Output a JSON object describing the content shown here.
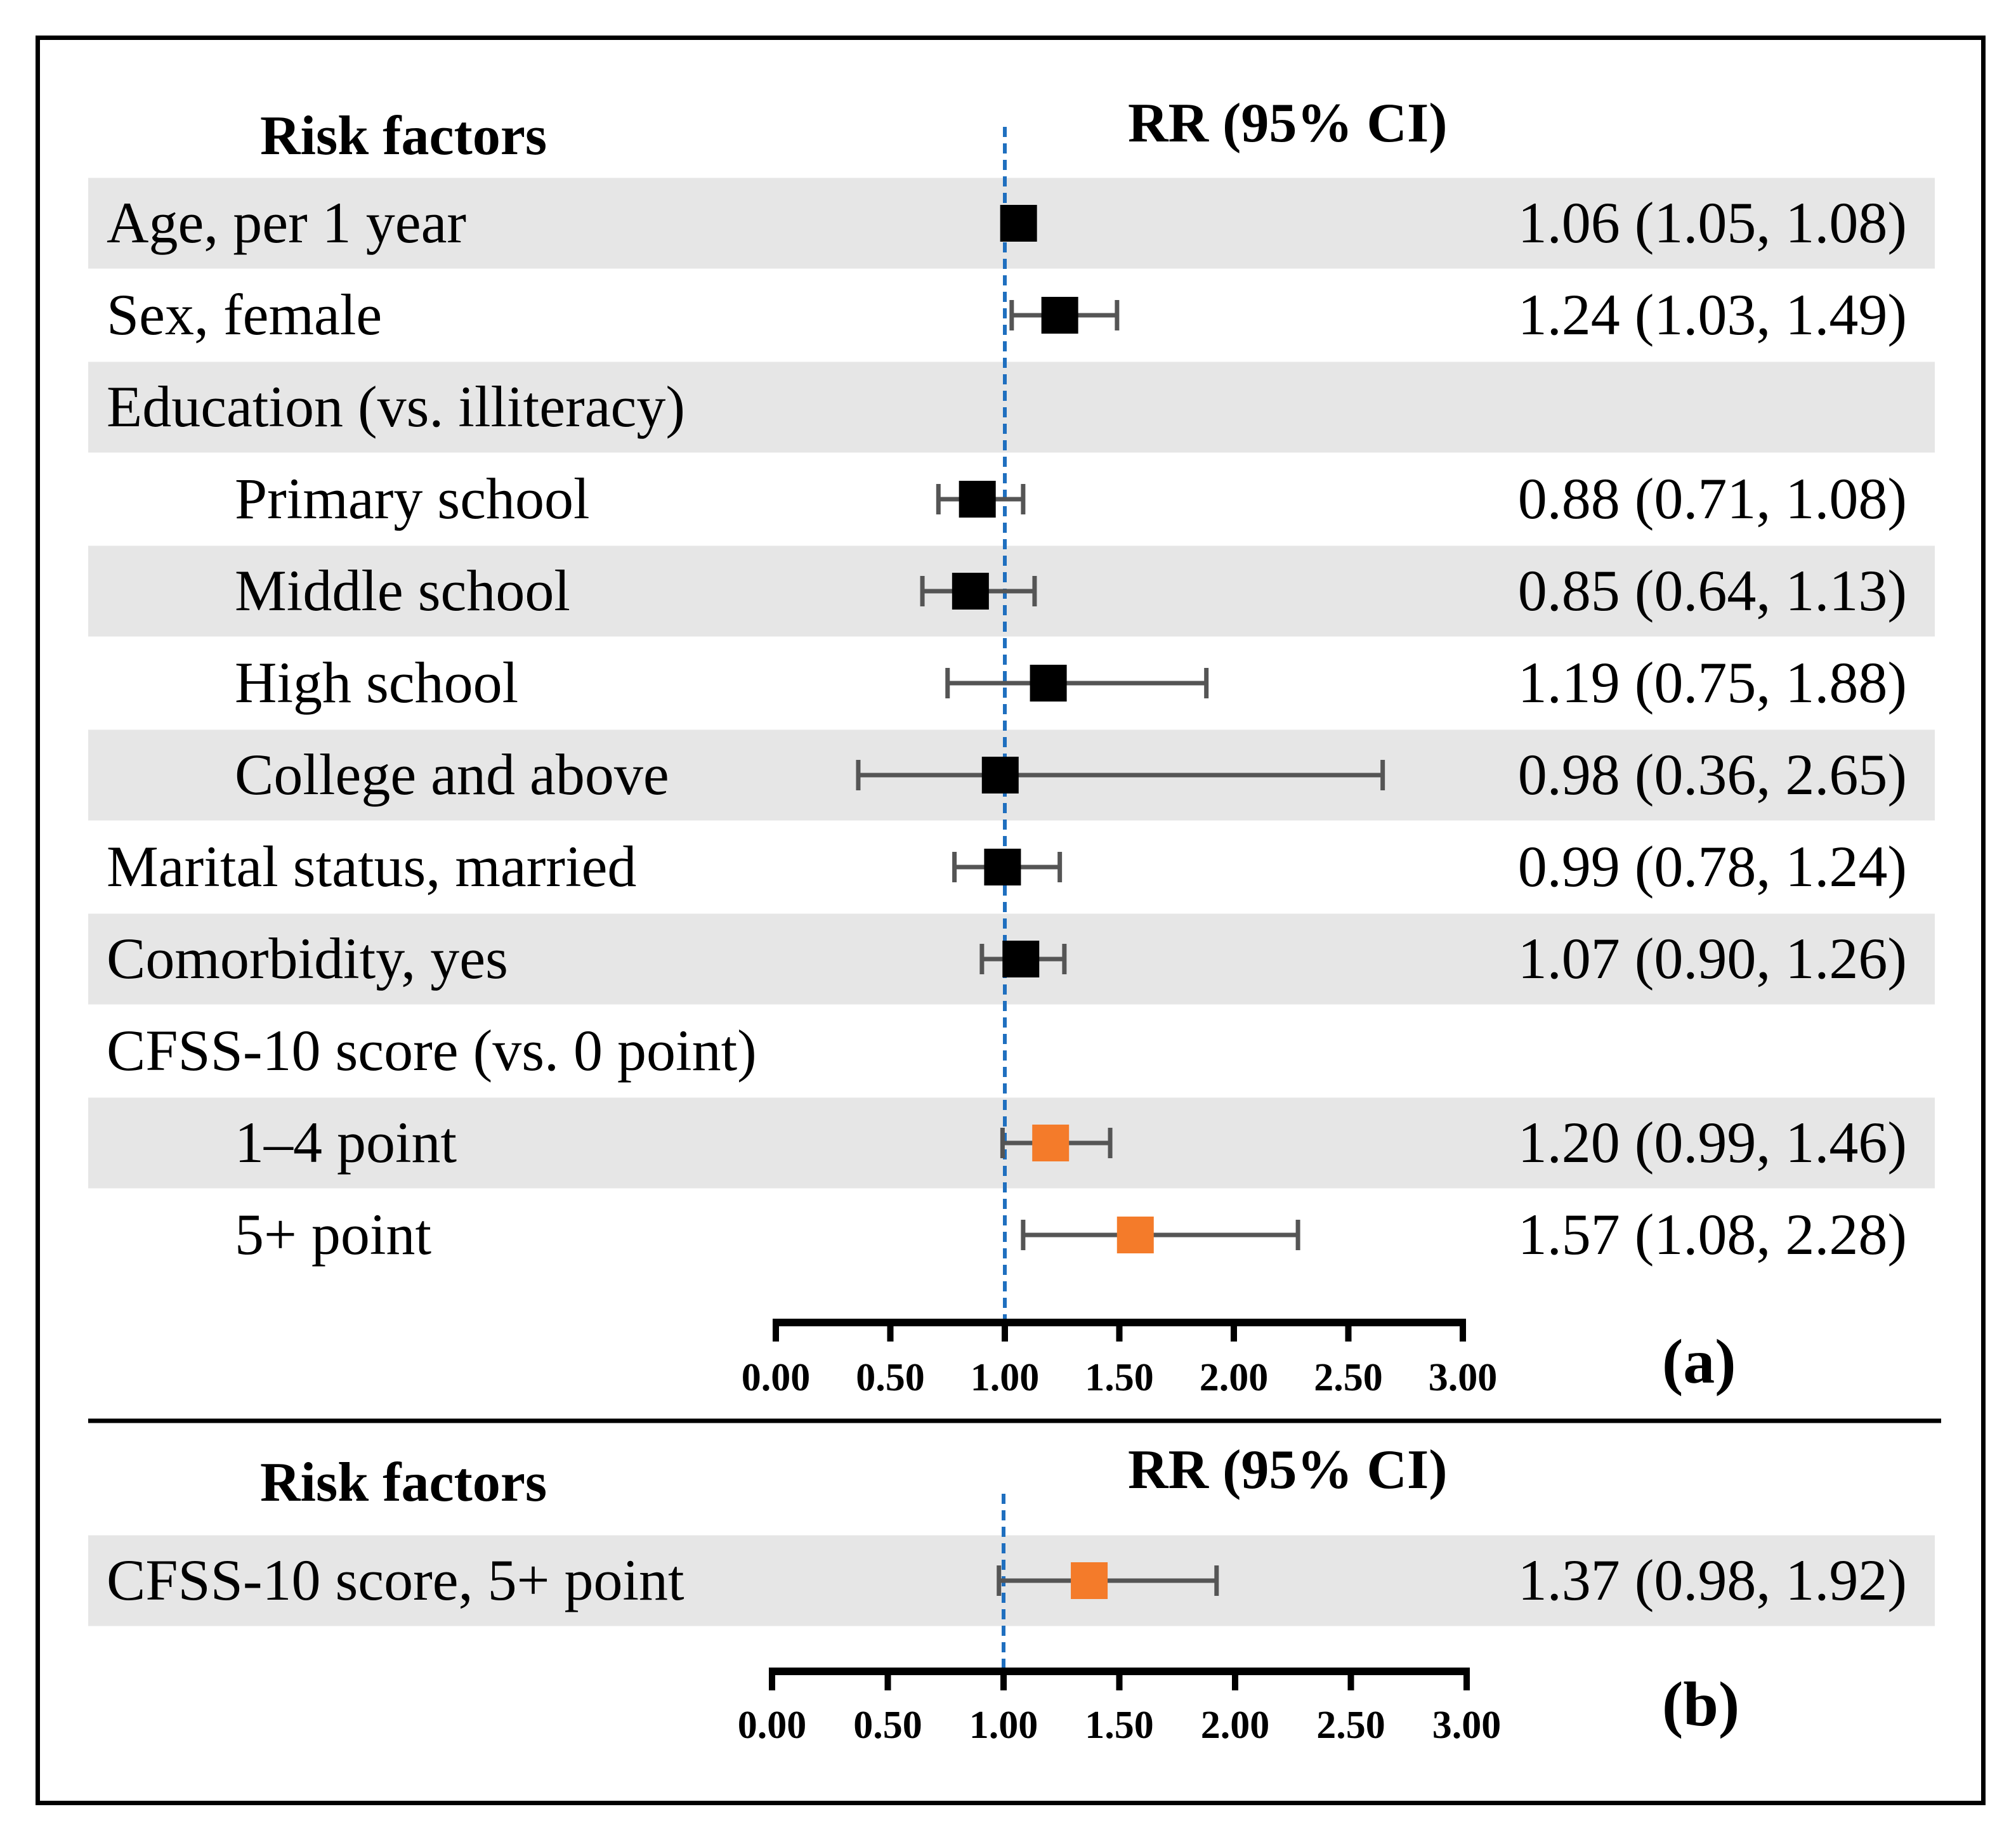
{
  "chart_data": [
    {
      "panel": "(a)",
      "type": "forest",
      "header_left": "Risk factors",
      "header_right": "RR (95% CI)",
      "reference_line": 1.0,
      "xlim": [
        0,
        3
      ],
      "x_ticks": [
        "0.00",
        "0.50",
        "1.00",
        "1.50",
        "2.00",
        "2.50",
        "3.00"
      ],
      "rows": [
        {
          "label": "Age, per 1 year",
          "indent": false,
          "shaded": true,
          "rr": 1.06,
          "lo": 1.05,
          "hi": 1.08,
          "text": "1.06 (1.05, 1.08)",
          "color": "#000000"
        },
        {
          "label": "Sex, female",
          "indent": false,
          "shaded": false,
          "rr": 1.24,
          "lo": 1.03,
          "hi": 1.49,
          "text": "1.24 (1.03, 1.49)",
          "color": "#000000"
        },
        {
          "label": "Education (vs. illiteracy)",
          "indent": false,
          "shaded": true,
          "rr": null,
          "lo": null,
          "hi": null,
          "text": "",
          "color": "#000000"
        },
        {
          "label": "Primary school",
          "indent": true,
          "shaded": false,
          "rr": 0.88,
          "lo": 0.71,
          "hi": 1.08,
          "text": "0.88 (0.71, 1.08)",
          "color": "#000000"
        },
        {
          "label": "Middle school",
          "indent": true,
          "shaded": true,
          "rr": 0.85,
          "lo": 0.64,
          "hi": 1.13,
          "text": "0.85 (0.64, 1.13)",
          "color": "#000000"
        },
        {
          "label": "High school",
          "indent": true,
          "shaded": false,
          "rr": 1.19,
          "lo": 0.75,
          "hi": 1.88,
          "text": "1.19 (0.75, 1.88)",
          "color": "#000000"
        },
        {
          "label": "College and above",
          "indent": true,
          "shaded": true,
          "rr": 0.98,
          "lo": 0.36,
          "hi": 2.65,
          "text": "0.98 (0.36, 2.65)",
          "color": "#000000"
        },
        {
          "label": "Marital status, married",
          "indent": false,
          "shaded": false,
          "rr": 0.99,
          "lo": 0.78,
          "hi": 1.24,
          "text": "0.99 (0.78, 1.24)",
          "color": "#000000"
        },
        {
          "label": "Comorbidity, yes",
          "indent": false,
          "shaded": true,
          "rr": 1.07,
          "lo": 0.9,
          "hi": 1.26,
          "text": "1.07 (0.90, 1.26)",
          "color": "#000000"
        },
        {
          "label": "CFSS-10 score (vs. 0 point)",
          "indent": false,
          "shaded": false,
          "rr": null,
          "lo": null,
          "hi": null,
          "text": "",
          "color": "#000000"
        },
        {
          "label": "1–4 point",
          "indent": true,
          "shaded": true,
          "rr": 1.2,
          "lo": 0.99,
          "hi": 1.46,
          "text": "1.20 (0.99, 1.46)",
          "color": "#F47B2A"
        },
        {
          "label": "5+ point",
          "indent": true,
          "shaded": false,
          "rr": 1.57,
          "lo": 1.08,
          "hi": 2.28,
          "text": "1.57 (1.08, 2.28)",
          "color": "#F47B2A"
        }
      ]
    },
    {
      "panel": "(b)",
      "type": "forest",
      "header_left": "Risk factors",
      "header_right": "RR (95% CI)",
      "reference_line": 1.0,
      "xlim": [
        0,
        3
      ],
      "x_ticks": [
        "0.00",
        "0.50",
        "1.00",
        "1.50",
        "2.00",
        "2.50",
        "3.00"
      ],
      "rows": [
        {
          "label": "CFSS-10 score, 5+ point",
          "indent": false,
          "shaded": true,
          "rr": 1.37,
          "lo": 0.98,
          "hi": 1.92,
          "text": "1.37 (0.98, 1.92)",
          "color": "#F47B2A"
        }
      ]
    }
  ],
  "colors": {
    "row_shade": "#E6E6E6",
    "reference_line": "#1F6FBF",
    "ci_line": "#555555"
  }
}
